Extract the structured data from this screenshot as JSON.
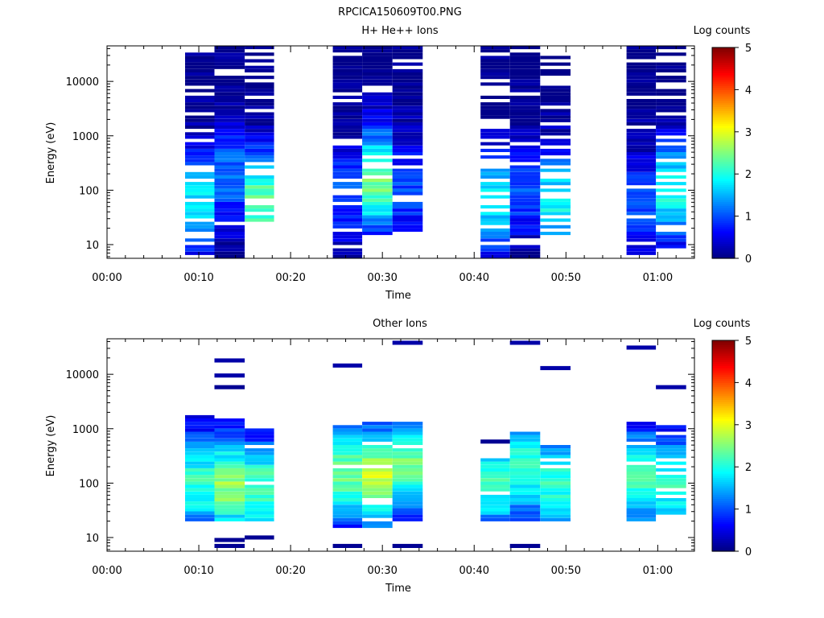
{
  "figure_title": "RPCICA150609T00.PNG",
  "colormap": [
    "#00007f",
    "#0000ff",
    "#007fff",
    "#00ffff",
    "#7fff7f",
    "#ffff00",
    "#ff7f00",
    "#ff0000",
    "#7f0000"
  ],
  "chart_data": [
    {
      "type": "heatmap",
      "title": "H+ He++ Ions",
      "xlabel": "Time",
      "ylabel": "Energy (eV)",
      "x_unit": "minutes",
      "xlim": [
        0,
        64
      ],
      "x_ticks": [
        0,
        10,
        20,
        30,
        40,
        50,
        60
      ],
      "x_tick_labels": [
        "00:00",
        "00:10",
        "00:20",
        "00:30",
        "00:40",
        "00:50",
        "01:00"
      ],
      "y_scale": "log",
      "ylim": [
        5.6,
        45000
      ],
      "y_ticks": [
        10,
        100,
        1000,
        10000
      ],
      "y_tick_labels": [
        "10",
        "100",
        "1000",
        "10000"
      ],
      "colorbar": {
        "label": "Log counts",
        "range": [
          0,
          5
        ],
        "ticks": [
          0,
          1,
          2,
          3,
          4,
          5
        ],
        "tick_labels": [
          "0",
          "1",
          "2",
          "3",
          "4",
          "5"
        ]
      },
      "scans": [
        {
          "start": 8.5,
          "end": 11.7,
          "emin": 6,
          "emax": 42000,
          "max_level": 1.8,
          "peak_energy": 60,
          "fill": 0.75,
          "seed": 11
        },
        {
          "start": 11.7,
          "end": 15.0,
          "emin": 6,
          "emax": 42000,
          "max_level": 1.2,
          "peak_energy": 200,
          "fill": 0.9,
          "seed": 12
        },
        {
          "start": 15.0,
          "end": 18.2,
          "emin": 25,
          "emax": 42000,
          "max_level": 2.4,
          "peak_energy": 60,
          "fill": 0.7,
          "seed": 13
        },
        {
          "start": 24.6,
          "end": 27.8,
          "emin": 6,
          "emax": 42000,
          "max_level": 1.0,
          "peak_energy": 100,
          "fill": 0.85,
          "seed": 21
        },
        {
          "start": 27.8,
          "end": 31.1,
          "emin": 15,
          "emax": 42000,
          "max_level": 2.5,
          "peak_energy": 150,
          "fill": 0.85,
          "seed": 22
        },
        {
          "start": 31.1,
          "end": 34.4,
          "emin": 15,
          "emax": 42000,
          "max_level": 1.0,
          "peak_energy": 100,
          "fill": 0.9,
          "seed": 23
        },
        {
          "start": 40.7,
          "end": 43.9,
          "emin": 6,
          "emax": 42000,
          "max_level": 1.8,
          "peak_energy": 60,
          "fill": 0.65,
          "seed": 31
        },
        {
          "start": 43.9,
          "end": 47.2,
          "emin": 6,
          "emax": 42000,
          "max_level": 1.0,
          "peak_energy": 100,
          "fill": 0.85,
          "seed": 32
        },
        {
          "start": 47.2,
          "end": 50.5,
          "emin": 15,
          "emax": 30000,
          "max_level": 1.9,
          "peak_energy": 60,
          "fill": 0.7,
          "seed": 33
        },
        {
          "start": 56.6,
          "end": 59.8,
          "emin": 6,
          "emax": 42000,
          "max_level": 1.0,
          "peak_energy": 50,
          "fill": 0.85,
          "seed": 41
        },
        {
          "start": 59.8,
          "end": 63.1,
          "emin": 6,
          "emax": 42000,
          "max_level": 2.0,
          "peak_energy": 100,
          "fill": 0.75,
          "seed": 42
        }
      ]
    },
    {
      "type": "heatmap",
      "title": "Other Ions",
      "xlabel": "Time",
      "ylabel": "Energy (eV)",
      "x_unit": "minutes",
      "xlim": [
        0,
        64
      ],
      "x_ticks": [
        0,
        10,
        20,
        30,
        40,
        50,
        60
      ],
      "x_tick_labels": [
        "00:00",
        "00:10",
        "00:20",
        "00:30",
        "00:40",
        "00:50",
        "01:00"
      ],
      "y_scale": "log",
      "ylim": [
        5.6,
        45000
      ],
      "y_ticks": [
        10,
        100,
        1000,
        10000
      ],
      "y_tick_labels": [
        "10",
        "100",
        "1000",
        "10000"
      ],
      "colorbar": {
        "label": "Log counts",
        "range": [
          0,
          5
        ],
        "ticks": [
          0,
          1,
          2,
          3,
          4,
          5
        ],
        "tick_labels": [
          "0",
          "1",
          "2",
          "3",
          "4",
          "5"
        ]
      },
      "scans": [
        {
          "start": 8.5,
          "end": 11.7,
          "emin": 20,
          "emax": 1800,
          "max_level": 2.1,
          "peak_energy": 100,
          "fill": 0.95,
          "seed": 51
        },
        {
          "start": 11.7,
          "end": 15.0,
          "emin": 20,
          "emax": 1600,
          "max_level": 2.6,
          "peak_energy": 90,
          "fill": 0.95,
          "seed": 52
        },
        {
          "start": 15.0,
          "end": 18.2,
          "emin": 20,
          "emax": 1050,
          "max_level": 2.3,
          "peak_energy": 80,
          "fill": 0.9,
          "seed": 53
        },
        {
          "start": 24.6,
          "end": 27.8,
          "emin": 15,
          "emax": 1150,
          "max_level": 2.4,
          "peak_energy": 150,
          "fill": 0.95,
          "seed": 61
        },
        {
          "start": 27.8,
          "end": 31.1,
          "emin": 15,
          "emax": 1350,
          "max_level": 2.9,
          "peak_energy": 130,
          "fill": 0.95,
          "seed": 62
        },
        {
          "start": 31.1,
          "end": 34.4,
          "emin": 20,
          "emax": 1300,
          "max_level": 2.4,
          "peak_energy": 250,
          "fill": 0.9,
          "seed": 63
        },
        {
          "start": 40.7,
          "end": 43.9,
          "emin": 20,
          "emax": 300,
          "max_level": 2.1,
          "peak_energy": 100,
          "fill": 0.95,
          "seed": 71
        },
        {
          "start": 43.9,
          "end": 47.2,
          "emin": 20,
          "emax": 900,
          "max_level": 2.2,
          "peak_energy": 200,
          "fill": 0.95,
          "seed": 72
        },
        {
          "start": 47.2,
          "end": 50.5,
          "emin": 20,
          "emax": 480,
          "max_level": 2.1,
          "peak_energy": 100,
          "fill": 0.9,
          "seed": 73
        },
        {
          "start": 56.6,
          "end": 59.8,
          "emin": 20,
          "emax": 1300,
          "max_level": 2.2,
          "peak_energy": 120,
          "fill": 0.95,
          "seed": 81
        },
        {
          "start": 59.8,
          "end": 63.1,
          "emin": 25,
          "emax": 1100,
          "max_level": 2.1,
          "peak_energy": 100,
          "fill": 0.9,
          "seed": 82
        }
      ],
      "isolated_cells": [
        {
          "start": 11.7,
          "end": 15.0,
          "energy": 18000,
          "level": 0.2
        },
        {
          "start": 11.7,
          "end": 15.0,
          "energy": 9500,
          "level": 0.2
        },
        {
          "start": 11.7,
          "end": 15.0,
          "energy": 5800,
          "level": 0.1
        },
        {
          "start": 11.7,
          "end": 15.0,
          "energy": 9,
          "level": 0.1
        },
        {
          "start": 11.7,
          "end": 15.0,
          "energy": 7,
          "level": 0.1
        },
        {
          "start": 15.0,
          "end": 18.2,
          "energy": 10,
          "level": 0.1
        },
        {
          "start": 24.6,
          "end": 27.8,
          "energy": 14500,
          "level": 0.2
        },
        {
          "start": 24.6,
          "end": 27.8,
          "energy": 7,
          "level": 0.1
        },
        {
          "start": 31.1,
          "end": 34.4,
          "energy": 38000,
          "level": 0.2
        },
        {
          "start": 31.1,
          "end": 34.4,
          "energy": 7,
          "level": 0.1
        },
        {
          "start": 40.7,
          "end": 43.9,
          "energy": 580,
          "level": 0.1
        },
        {
          "start": 43.9,
          "end": 47.2,
          "energy": 38000,
          "level": 0.2
        },
        {
          "start": 43.9,
          "end": 47.2,
          "energy": 7,
          "level": 0.1
        },
        {
          "start": 47.2,
          "end": 50.5,
          "energy": 13000,
          "level": 0.2
        },
        {
          "start": 56.6,
          "end": 59.8,
          "energy": 31000,
          "level": 0.2
        },
        {
          "start": 59.8,
          "end": 63.1,
          "energy": 5800,
          "level": 0.2
        }
      ]
    }
  ]
}
